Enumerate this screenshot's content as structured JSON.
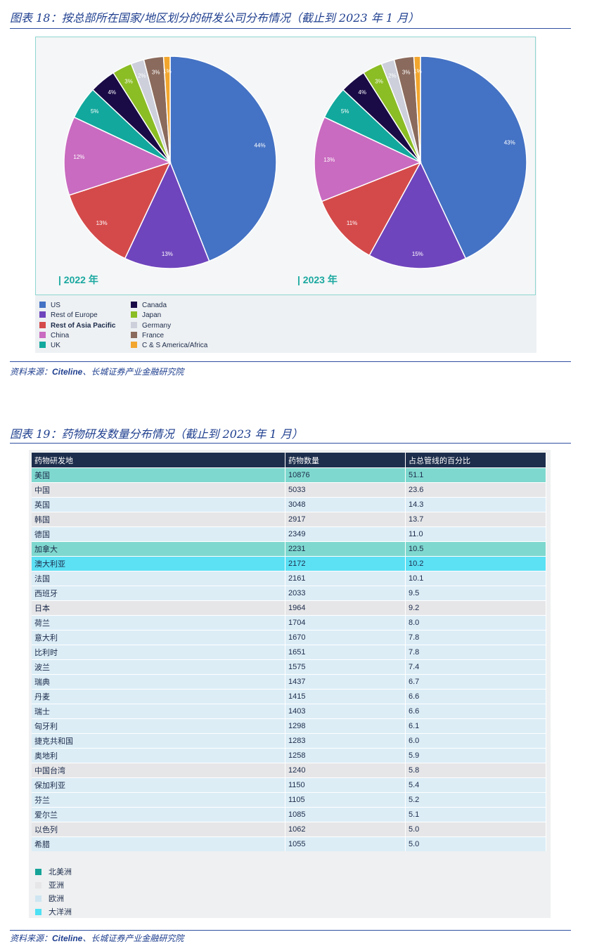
{
  "fig18": {
    "title": "图表 18：按总部所在国家/地区划分的研发公司分布情况（截止到 2023 年 1 月）",
    "source_prefix": "资料来源：",
    "source_bold": "Citeline",
    "source_rest": "、长城证券产业金融研究院"
  },
  "chart_data": {
    "type": "pie",
    "categories": [
      "US",
      "Rest of Europe",
      "Rest of Asia Pacific",
      "China",
      "UK",
      "Canada",
      "Japan",
      "Germany",
      "France",
      "C & S America/Africa"
    ],
    "colors": [
      "#4472c4",
      "#6f45bd",
      "#d44a4a",
      "#c96bc0",
      "#12a89d",
      "#1a0b47",
      "#8bbd24",
      "#cdd0db",
      "#8a6a5c",
      "#f2a62e"
    ],
    "series": [
      {
        "name": "| 2022 年",
        "values": [
          44,
          13,
          13,
          12,
          5,
          4,
          3,
          2,
          3,
          1
        ],
        "labels": [
          "44%",
          "13%",
          "13%",
          "12%",
          "5%",
          "4%",
          "3%",
          "2%",
          "3%",
          "1%"
        ]
      },
      {
        "name": "| 2023 年",
        "values": [
          43,
          15,
          11,
          13,
          5,
          4,
          3,
          2,
          3,
          1
        ],
        "labels": [
          "43%",
          "15%",
          "11%",
          "13%",
          "5%",
          "4%",
          "3%",
          "2%",
          "3%",
          "1%"
        ]
      }
    ],
    "legend_position": "bottom-left"
  },
  "fig19": {
    "title": "图表 19：药物研发数量分布情况（截止到 2023 年 1 月）",
    "headers": [
      "药物研发地",
      "药物数量",
      "占总管线的百分比"
    ],
    "rows": [
      {
        "country": "美国",
        "count": "10876",
        "pct": "51.1",
        "region": "na"
      },
      {
        "country": "中国",
        "count": "5033",
        "pct": "23.6",
        "region": "as"
      },
      {
        "country": "英国",
        "count": "3048",
        "pct": "14.3",
        "region": "eu"
      },
      {
        "country": "韩国",
        "count": "2917",
        "pct": "13.7",
        "region": "as"
      },
      {
        "country": "德国",
        "count": "2349",
        "pct": "11.0",
        "region": "eu"
      },
      {
        "country": "加拿大",
        "count": "2231",
        "pct": "10.5",
        "region": "na"
      },
      {
        "country": "澳大利亚",
        "count": "2172",
        "pct": "10.2",
        "region": "oc"
      },
      {
        "country": "法国",
        "count": "2161",
        "pct": "10.1",
        "region": "eu"
      },
      {
        "country": "西班牙",
        "count": "2033",
        "pct": "9.5",
        "region": "eu"
      },
      {
        "country": "日本",
        "count": "1964",
        "pct": "9.2",
        "region": "as"
      },
      {
        "country": "荷兰",
        "count": "1704",
        "pct": "8.0",
        "region": "eu"
      },
      {
        "country": "意大利",
        "count": "1670",
        "pct": "7.8",
        "region": "eu"
      },
      {
        "country": "比利时",
        "count": "1651",
        "pct": "7.8",
        "region": "eu"
      },
      {
        "country": "波兰",
        "count": "1575",
        "pct": "7.4",
        "region": "eu"
      },
      {
        "country": "瑞典",
        "count": "1437",
        "pct": "6.7",
        "region": "eu"
      },
      {
        "country": "丹麦",
        "count": "1415",
        "pct": "6.6",
        "region": "eu"
      },
      {
        "country": "瑞士",
        "count": "1403",
        "pct": "6.6",
        "region": "eu"
      },
      {
        "country": "匈牙利",
        "count": "1298",
        "pct": "6.1",
        "region": "eu"
      },
      {
        "country": "捷克共和国",
        "count": "1283",
        "pct": "6.0",
        "region": "eu"
      },
      {
        "country": "奥地利",
        "count": "1258",
        "pct": "5.9",
        "region": "eu"
      },
      {
        "country": "中国台湾",
        "count": "1240",
        "pct": "5.8",
        "region": "as"
      },
      {
        "country": "保加利亚",
        "count": "1150",
        "pct": "5.4",
        "region": "eu"
      },
      {
        "country": "芬兰",
        "count": "1105",
        "pct": "5.2",
        "region": "eu"
      },
      {
        "country": "爱尔兰",
        "count": "1085",
        "pct": "5.1",
        "region": "eu"
      },
      {
        "country": "以色列",
        "count": "1062",
        "pct": "5.0",
        "region": "as"
      },
      {
        "country": "希腊",
        "count": "1055",
        "pct": "5.0",
        "region": "eu"
      }
    ],
    "legend": [
      {
        "label": "北美洲",
        "color": "#15a398"
      },
      {
        "label": "亚洲",
        "color": "#e6e6e8"
      },
      {
        "label": "欧洲",
        "color": "#cfe6f2"
      },
      {
        "label": "大洋洲",
        "color": "#4ee0f4"
      }
    ],
    "source_prefix": "资料来源：",
    "source_bold": "Citeline",
    "source_rest": "、长城证券产业金融研究院"
  }
}
